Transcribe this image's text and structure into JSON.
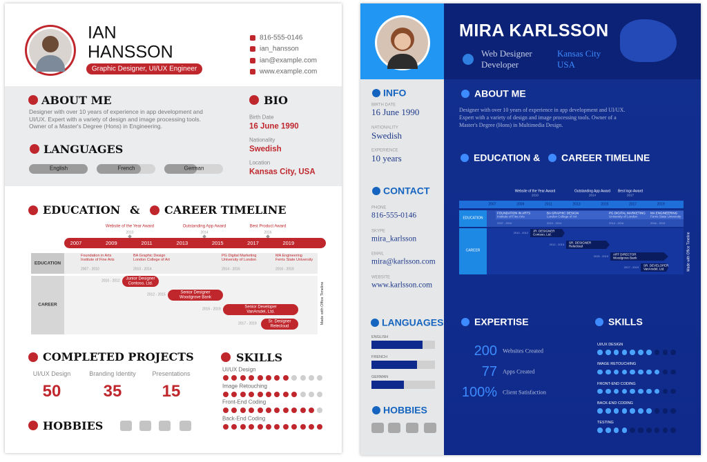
{
  "left": {
    "name_line1": "IAN",
    "name_line2": "HANSSON",
    "role": "Graphic Designer, UI/UX Engineer",
    "contacts": [
      "816-555-0146",
      "ian_hansson",
      "ian@example.com",
      "www.example.com"
    ],
    "about": {
      "title": "ABOUT ME",
      "text": "Designer with over 10 years of experience in app development and UI/UX. Expert with a variety of design and image processing tools. Owner of a Master's Degree (Hons) in Engineering."
    },
    "bio": {
      "title": "BIO",
      "items": [
        {
          "label": "Birth Date",
          "value": "16 June 1990"
        },
        {
          "label": "Nationality",
          "value": "Swedish"
        },
        {
          "label": "Location",
          "value": "Kansas City, USA"
        }
      ]
    },
    "languages": {
      "title": "LANGUAGES",
      "items": [
        {
          "name": "English",
          "level": 100
        },
        {
          "name": "French",
          "level": 75
        },
        {
          "name": "German",
          "level": 55
        }
      ]
    },
    "timeline": {
      "title_a": "EDUCATION",
      "amp": "&",
      "title_b": "CAREER TIMELINE",
      "milestones": [
        {
          "label": "Website of the Year Award",
          "year": "2010"
        },
        {
          "label": "Outstanding App Award",
          "year": "2014"
        },
        {
          "label": "Best Product Award",
          "year": "2016"
        }
      ],
      "years": [
        "2007",
        "2009",
        "2011",
        "2013",
        "2015",
        "2017",
        "2019"
      ],
      "rows": [
        "EDUCATION",
        "CAREER"
      ],
      "education": [
        {
          "title": "Foundation in Arts",
          "school": "Institute of Fine Arts",
          "dates": "2007 - 2010"
        },
        {
          "title": "BA Graphic Design",
          "school": "London College of Art",
          "dates": "2010 - 2014"
        },
        {
          "title": "PG Digital Marketing",
          "school": "University of London",
          "dates": "2014 - 2016"
        },
        {
          "title": "MA Engineering",
          "school": "Ferris State University",
          "dates": "2016 - 2019"
        }
      ],
      "career": [
        {
          "title": "Junior Designer",
          "company": "Contoso, Ltd.",
          "dates": "2010 - 2012"
        },
        {
          "title": "Senior Designer",
          "company": "Woodgrove Bank",
          "dates": "2012 - 2015"
        },
        {
          "title": "Senior Developer",
          "company": "VanArsdel, Ltd.",
          "dates": "2015 - 2019"
        },
        {
          "title": "Sr. Designer",
          "company": "Relecloud",
          "dates": "2017 - 2019"
        }
      ],
      "credit": "Made with Office Timeline"
    },
    "projects": {
      "title": "COMPLETED PROJECTS",
      "items": [
        {
          "label": "UI/UX Design",
          "value": "50"
        },
        {
          "label": "Branding Identity",
          "value": "35"
        },
        {
          "label": "Presentations",
          "value": "15"
        }
      ]
    },
    "skills": {
      "title": "SKILLS",
      "dots": 12,
      "items": [
        {
          "name": "UI/UX Design",
          "level": 8
        },
        {
          "name": "Image Retouching",
          "level": 9
        },
        {
          "name": "Front-End Coding",
          "level": 11
        },
        {
          "name": "Back-End Coding",
          "level": 12
        }
      ]
    },
    "hobbies": {
      "title": "HOBBIES"
    }
  },
  "right": {
    "name": "MIRA KARLSSON",
    "role": [
      "Web Designer",
      "Developer"
    ],
    "location": [
      "Kansas City",
      "USA"
    ],
    "info": {
      "title": "INFO",
      "items": [
        {
          "label": "BIRTH DATE",
          "value": "16 June 1990"
        },
        {
          "label": "NATIONALITY",
          "value": "Swedish"
        },
        {
          "label": "EXPERIENCE",
          "value": "10 years"
        }
      ]
    },
    "contact": {
      "title": "CONTACT",
      "items": [
        {
          "label": "PHONE",
          "value": "816-555-0146"
        },
        {
          "label": "SKYPE",
          "value": "mira_karlsson"
        },
        {
          "label": "EMAIL",
          "value": "mira@karlsson.com"
        },
        {
          "label": "WEBSITE",
          "value": "www.karlsson.com"
        }
      ]
    },
    "languages": {
      "title": "LANGUAGES",
      "items": [
        {
          "name": "ENGLISH",
          "level": 80
        },
        {
          "name": "FRENCH",
          "level": 72
        },
        {
          "name": "GERMAN",
          "level": 51
        }
      ]
    },
    "hobbies": {
      "title": "HOBBIES"
    },
    "about": {
      "title": "ABOUT ME",
      "text": "Designer with over 10 years of experience in app development and UI/UX. Expert with a variety of design and image processing tools. Owner of a Master's Degree (Hons) in Multimedia Design."
    },
    "timeline": {
      "title_a": "EDUCATION &",
      "title_b": "CAREER TIMELINE",
      "milestones": [
        {
          "label": "Website of the Year Award",
          "year": "2010"
        },
        {
          "label": "Outstanding App Award",
          "year": "2014"
        },
        {
          "label": "Best logo Award",
          "year": "2017"
        }
      ],
      "years": [
        "2007",
        "2009",
        "2011",
        "2013",
        "2015",
        "2017",
        "2019"
      ],
      "rows": [
        "EDUCATION",
        "CAREER"
      ],
      "education": [
        {
          "title": "FOUNDATION IN ARTS",
          "school": "Institute of Fine Arts",
          "dates": "2007 - 2010"
        },
        {
          "title": "BA GRAPHIC DESIGN",
          "school": "London College of Art",
          "dates": "2010 - 2014"
        },
        {
          "title": "PG DIGITAL MARKETING",
          "school": "University of London",
          "dates": "2014 - 2016"
        },
        {
          "title": "MA ENGINEERING",
          "school": "Ferris State University",
          "dates": "2016 - 2019"
        }
      ],
      "career": [
        {
          "title": "JR. DESIGNER",
          "company": "Contoso, Ltd.",
          "dates": "2010 - 2012"
        },
        {
          "title": "SR. DESIGNER",
          "company": "Relecloud",
          "dates": "2012 - 2015"
        },
        {
          "title": "ART DIRECTOR",
          "company": "Woodgrove Bank",
          "dates": "2015 - 2019"
        },
        {
          "title": "SR. DEVELOPER",
          "company": "VanArsdel, Ltd.",
          "dates": "2017 - 2019"
        }
      ],
      "credit": "Made with Office Timeline"
    },
    "expertise": {
      "title": "EXPERTISE",
      "items": [
        {
          "value": "200",
          "label": "Websites Created"
        },
        {
          "value": "77",
          "label": "Apps Created"
        },
        {
          "value": "100%",
          "label": "Client Satisfaction"
        }
      ]
    },
    "skills": {
      "title": "SKILLS",
      "dots": 10,
      "items": [
        {
          "name": "UI/UX DESIGN",
          "level": 7
        },
        {
          "name": "IMAGE RETOUCHING",
          "level": 8
        },
        {
          "name": "FRONT-END CODING",
          "level": 8
        },
        {
          "name": "BACK-END CODING",
          "level": 7
        },
        {
          "name": "TESTING",
          "level": 4
        }
      ]
    }
  }
}
